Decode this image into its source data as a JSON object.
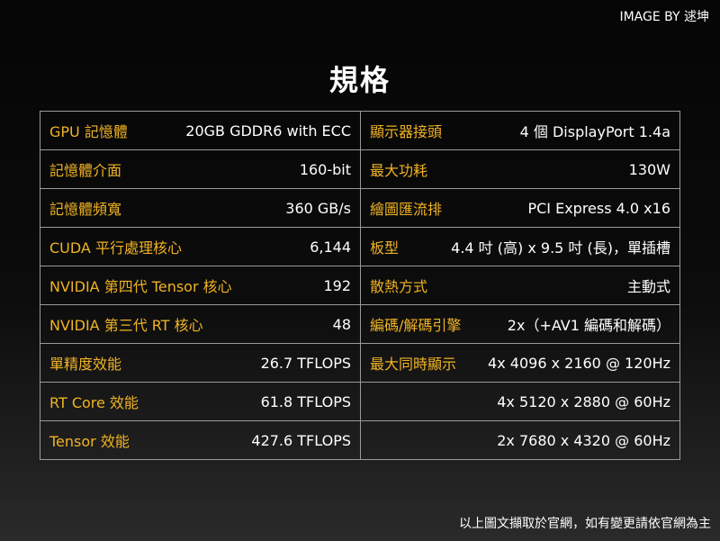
{
  "credit": "IMAGE BY 逑坤",
  "title": "規格",
  "rows": [
    {
      "l_label": "GPU 記憶體",
      "l_value": "20GB GDDR6 with ECC",
      "r_label": "顯示器接頭",
      "r_value": "4 個 DisplayPort 1.4a"
    },
    {
      "l_label": "記憶體介面",
      "l_value": "160-bit",
      "r_label": "最大功耗",
      "r_value": "130W"
    },
    {
      "l_label": "記憶體頻寬",
      "l_value": "360 GB/s",
      "r_label": "繪圖匯流排",
      "r_value": "PCI Express 4.0 x16"
    },
    {
      "l_label": "CUDA 平行處理核心",
      "l_value": "6,144",
      "r_label": "板型",
      "r_value": "4.4 吋 (高) x 9.5 吋 (長)，單插槽"
    },
    {
      "l_label": "NVIDIA 第四代 Tensor 核心",
      "l_value": "192",
      "r_label": "散熱方式",
      "r_value": "主動式"
    },
    {
      "l_label": "NVIDIA 第三代 RT 核心",
      "l_value": "48",
      "r_label": "編碼/解碼引擎",
      "r_value": "2x（+AV1 編碼和解碼）"
    },
    {
      "l_label": "單精度效能",
      "l_value": "26.7 TFLOPS",
      "r_label": "最大同時顯示",
      "r_value": "4x 4096 x 2160 @ 120Hz"
    },
    {
      "l_label": "RT Core 效能",
      "l_value": "61.8 TFLOPS",
      "r_label": "",
      "r_value": "4x 5120 x 2880 @ 60Hz"
    },
    {
      "l_label": "Tensor 效能",
      "l_value": "427.6 TFLOPS",
      "r_label": "",
      "r_value": "2x 7680 x 4320 @ 60Hz"
    }
  ],
  "footer": "以上圖文擷取於官網，如有變更請依官網為主"
}
